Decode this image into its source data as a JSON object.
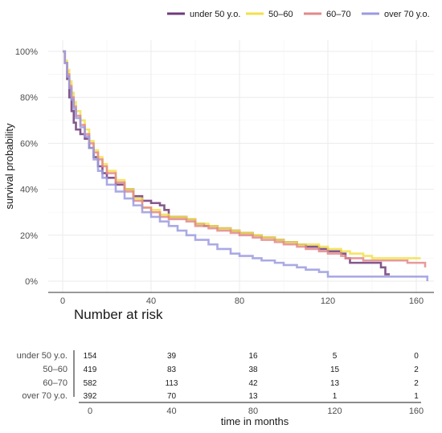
{
  "chart_data": [
    {
      "type": "line",
      "subtype": "kaplan-meier step",
      "xlabel": "",
      "ylabel": "survival probability",
      "xlim": [
        0,
        165
      ],
      "ylim": [
        0,
        1
      ],
      "x_ticks": [
        0,
        40,
        80,
        120,
        160
      ],
      "y_ticks": [
        "0%",
        "20%",
        "40%",
        "60%",
        "80%",
        "100%"
      ],
      "y_tick_values": [
        0,
        0.2,
        0.4,
        0.6,
        0.8,
        1.0
      ],
      "grid": true,
      "legend_position": "top-right",
      "series": [
        {
          "name": "under 50 y.o.",
          "color": "#6e3b78",
          "points": [
            [
              0,
              1.0
            ],
            [
              1,
              0.95
            ],
            [
              2,
              0.88
            ],
            [
              3,
              0.8
            ],
            [
              4,
              0.74
            ],
            [
              5,
              0.69
            ],
            [
              6,
              0.66
            ],
            [
              8,
              0.64
            ],
            [
              10,
              0.62
            ],
            [
              12,
              0.58
            ],
            [
              14,
              0.54
            ],
            [
              16,
              0.5
            ],
            [
              18,
              0.47
            ],
            [
              20,
              0.45
            ],
            [
              24,
              0.42
            ],
            [
              28,
              0.4
            ],
            [
              32,
              0.37
            ],
            [
              36,
              0.35
            ],
            [
              40,
              0.34
            ],
            [
              44,
              0.33
            ],
            [
              46,
              0.31
            ],
            [
              48,
              0.28
            ],
            [
              52,
              0.28
            ],
            [
              56,
              0.27
            ],
            [
              60,
              0.25
            ],
            [
              64,
              0.24
            ],
            [
              70,
              0.23
            ],
            [
              76,
              0.22
            ],
            [
              80,
              0.21
            ],
            [
              86,
              0.2
            ],
            [
              90,
              0.19
            ],
            [
              96,
              0.18
            ],
            [
              100,
              0.17
            ],
            [
              106,
              0.16
            ],
            [
              110,
              0.15
            ],
            [
              116,
              0.14
            ],
            [
              120,
              0.13
            ],
            [
              126,
              0.12
            ],
            [
              128,
              0.1
            ],
            [
              130,
              0.08
            ],
            [
              136,
              0.08
            ],
            [
              142,
              0.08
            ],
            [
              144,
              0.06
            ],
            [
              146,
              0.03
            ],
            [
              148,
              0.03
            ]
          ]
        },
        {
          "name": "50–60",
          "color": "#f2e04a",
          "points": [
            [
              0,
              1.0
            ],
            [
              1,
              0.96
            ],
            [
              2,
              0.92
            ],
            [
              3,
              0.87
            ],
            [
              4,
              0.82
            ],
            [
              5,
              0.78
            ],
            [
              6,
              0.74
            ],
            [
              8,
              0.7
            ],
            [
              10,
              0.66
            ],
            [
              12,
              0.61
            ],
            [
              14,
              0.57
            ],
            [
              16,
              0.54
            ],
            [
              18,
              0.51
            ],
            [
              20,
              0.48
            ],
            [
              24,
              0.44
            ],
            [
              28,
              0.4
            ],
            [
              32,
              0.36
            ],
            [
              36,
              0.32
            ],
            [
              40,
              0.31
            ],
            [
              44,
              0.29
            ],
            [
              48,
              0.28
            ],
            [
              52,
              0.28
            ],
            [
              56,
              0.27
            ],
            [
              60,
              0.25
            ],
            [
              66,
              0.24
            ],
            [
              70,
              0.23
            ],
            [
              76,
              0.22
            ],
            [
              80,
              0.21
            ],
            [
              86,
              0.2
            ],
            [
              90,
              0.19
            ],
            [
              96,
              0.18
            ],
            [
              100,
              0.17
            ],
            [
              106,
              0.16
            ],
            [
              110,
              0.16
            ],
            [
              116,
              0.15
            ],
            [
              120,
              0.14
            ],
            [
              126,
              0.13
            ],
            [
              130,
              0.12
            ],
            [
              136,
              0.11
            ],
            [
              140,
              0.1
            ],
            [
              146,
              0.1
            ],
            [
              152,
              0.1
            ],
            [
              156,
              0.1
            ],
            [
              160,
              0.1
            ],
            [
              162,
              0.1
            ]
          ]
        },
        {
          "name": "60–70",
          "color": "#e3888a",
          "points": [
            [
              0,
              1.0
            ],
            [
              1,
              0.95
            ],
            [
              2,
              0.9
            ],
            [
              3,
              0.85
            ],
            [
              4,
              0.8
            ],
            [
              5,
              0.76
            ],
            [
              6,
              0.72
            ],
            [
              8,
              0.68
            ],
            [
              10,
              0.64
            ],
            [
              12,
              0.6
            ],
            [
              14,
              0.56
            ],
            [
              16,
              0.53
            ],
            [
              18,
              0.5
            ],
            [
              20,
              0.47
            ],
            [
              24,
              0.43
            ],
            [
              28,
              0.39
            ],
            [
              32,
              0.35
            ],
            [
              36,
              0.32
            ],
            [
              40,
              0.3
            ],
            [
              44,
              0.28
            ],
            [
              48,
              0.27
            ],
            [
              52,
              0.27
            ],
            [
              56,
              0.26
            ],
            [
              60,
              0.24
            ],
            [
              66,
              0.23
            ],
            [
              70,
              0.22
            ],
            [
              76,
              0.21
            ],
            [
              80,
              0.2
            ],
            [
              86,
              0.19
            ],
            [
              90,
              0.18
            ],
            [
              96,
              0.17
            ],
            [
              100,
              0.16
            ],
            [
              106,
              0.15
            ],
            [
              110,
              0.14
            ],
            [
              116,
              0.13
            ],
            [
              120,
              0.12
            ],
            [
              124,
              0.12
            ],
            [
              126,
              0.11
            ],
            [
              128,
              0.1
            ],
            [
              130,
              0.1
            ],
            [
              136,
              0.09
            ],
            [
              140,
              0.09
            ],
            [
              146,
              0.09
            ],
            [
              152,
              0.09
            ],
            [
              156,
              0.08
            ],
            [
              160,
              0.08
            ],
            [
              162,
              0.08
            ],
            [
              164,
              0.06
            ]
          ]
        },
        {
          "name": "over 70 y.o.",
          "color": "#9b9be0",
          "points": [
            [
              0,
              1.0
            ],
            [
              1,
              0.95
            ],
            [
              2,
              0.89
            ],
            [
              3,
              0.84
            ],
            [
              4,
              0.79
            ],
            [
              5,
              0.75
            ],
            [
              6,
              0.71
            ],
            [
              8,
              0.67
            ],
            [
              10,
              0.63
            ],
            [
              12,
              0.58
            ],
            [
              14,
              0.53
            ],
            [
              16,
              0.48
            ],
            [
              18,
              0.45
            ],
            [
              20,
              0.42
            ],
            [
              24,
              0.39
            ],
            [
              28,
              0.36
            ],
            [
              32,
              0.33
            ],
            [
              36,
              0.3
            ],
            [
              40,
              0.28
            ],
            [
              44,
              0.26
            ],
            [
              48,
              0.24
            ],
            [
              52,
              0.22
            ],
            [
              56,
              0.2
            ],
            [
              60,
              0.18
            ],
            [
              66,
              0.16
            ],
            [
              70,
              0.14
            ],
            [
              76,
              0.12
            ],
            [
              80,
              0.11
            ],
            [
              86,
              0.1
            ],
            [
              90,
              0.09
            ],
            [
              96,
              0.08
            ],
            [
              100,
              0.07
            ],
            [
              106,
              0.06
            ],
            [
              110,
              0.05
            ],
            [
              116,
              0.04
            ],
            [
              120,
              0.02
            ],
            [
              126,
              0.02
            ],
            [
              130,
              0.02
            ],
            [
              136,
              0.02
            ],
            [
              140,
              0.02
            ],
            [
              146,
              0.02
            ],
            [
              152,
              0.02
            ],
            [
              156,
              0.02
            ],
            [
              160,
              0.02
            ],
            [
              164,
              0.02
            ],
            [
              165,
              0.0
            ]
          ]
        }
      ]
    },
    {
      "type": "table",
      "title": "Number at risk",
      "xlabel": "time in months",
      "x_ticks": [
        0,
        40,
        80,
        120,
        160
      ],
      "rows": [
        {
          "label": "under 50 y.o.",
          "values": [
            154,
            39,
            16,
            5,
            0
          ]
        },
        {
          "label": "50–60",
          "values": [
            419,
            83,
            38,
            15,
            2
          ]
        },
        {
          "label": "60–70",
          "values": [
            582,
            113,
            42,
            13,
            2
          ]
        },
        {
          "label": "over 70 y.o.",
          "values": [
            392,
            70,
            13,
            1,
            1
          ]
        }
      ]
    }
  ]
}
